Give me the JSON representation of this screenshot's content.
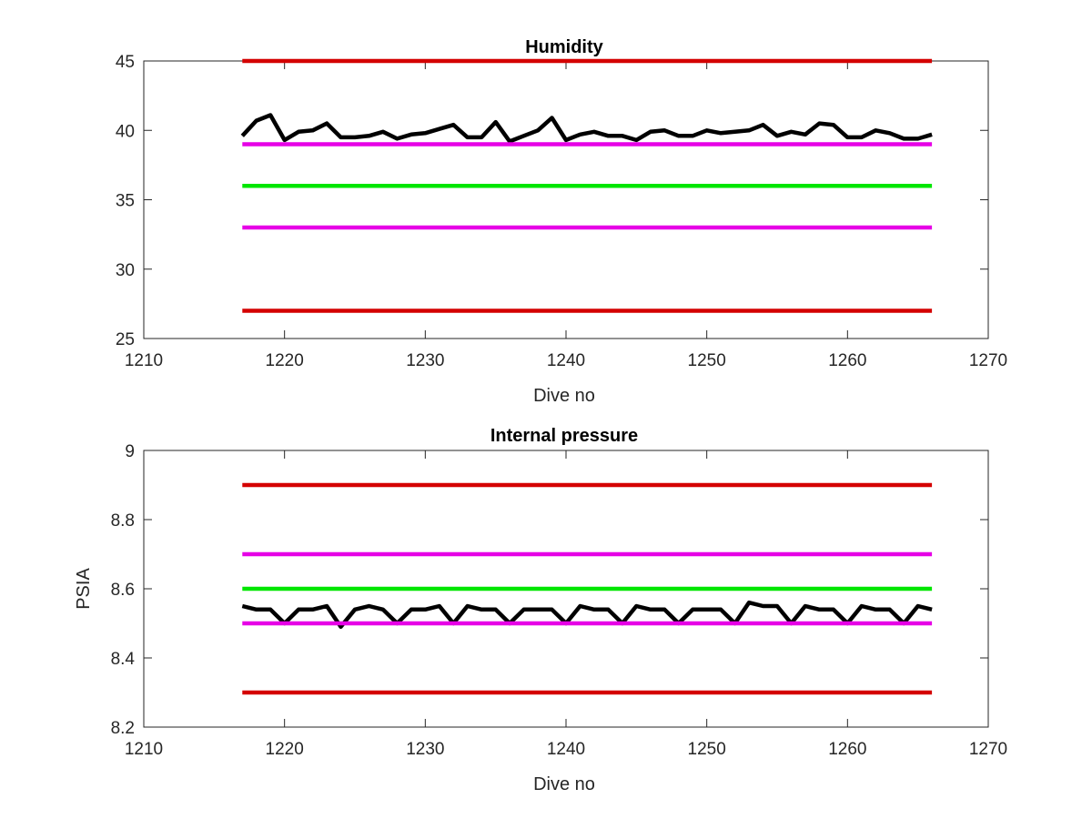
{
  "chart_data": [
    {
      "type": "line",
      "title": "Humidity",
      "xlabel": "Dive no",
      "ylabel": "",
      "xlim": [
        1210,
        1270
      ],
      "ylim": [
        25,
        45
      ],
      "xticks": [
        1210,
        1220,
        1230,
        1240,
        1250,
        1260,
        1270
      ],
      "yticks": [
        25,
        30,
        35,
        40,
        45
      ],
      "grid": false,
      "x": [
        1217,
        1218,
        1219,
        1220,
        1221,
        1222,
        1223,
        1224,
        1225,
        1226,
        1227,
        1228,
        1229,
        1230,
        1231,
        1232,
        1233,
        1234,
        1235,
        1236,
        1237,
        1238,
        1239,
        1240,
        1241,
        1242,
        1243,
        1244,
        1245,
        1246,
        1247,
        1248,
        1249,
        1250,
        1251,
        1252,
        1253,
        1254,
        1255,
        1256,
        1257,
        1258,
        1259,
        1260,
        1261,
        1262,
        1263,
        1264,
        1265,
        1266
      ],
      "series": [
        {
          "color": "#000000",
          "width": 4.5,
          "values": [
            39.6,
            40.7,
            41.1,
            39.3,
            39.9,
            40.0,
            40.5,
            39.5,
            39.5,
            39.6,
            39.9,
            39.4,
            39.7,
            39.8,
            40.1,
            40.4,
            39.5,
            39.5,
            40.6,
            39.2,
            39.6,
            40.0,
            40.9,
            39.3,
            39.7,
            39.9,
            39.6,
            39.6,
            39.3,
            39.9,
            40.0,
            39.6,
            39.6,
            40.0,
            39.8,
            39.9,
            40.0,
            40.4,
            39.6,
            39.9,
            39.7,
            40.5,
            40.4,
            39.5,
            39.5,
            40.0,
            39.8,
            39.4,
            39.4,
            39.7
          ]
        },
        {
          "color": "#d40000",
          "width": 4.5,
          "x_range": [
            1217,
            1266
          ],
          "constant": 45
        },
        {
          "color": "#e600e6",
          "width": 4.5,
          "x_range": [
            1217,
            1266
          ],
          "constant": 39
        },
        {
          "color": "#00e600",
          "width": 4.5,
          "x_range": [
            1217,
            1266
          ],
          "constant": 36
        },
        {
          "color": "#e600e6",
          "width": 4.5,
          "x_range": [
            1217,
            1266
          ],
          "constant": 33
        },
        {
          "color": "#d40000",
          "width": 4.5,
          "x_range": [
            1217,
            1266
          ],
          "constant": 27
        }
      ]
    },
    {
      "type": "line",
      "title": "Internal pressure",
      "xlabel": "Dive no",
      "ylabel": "PSIA",
      "xlim": [
        1210,
        1270
      ],
      "ylim": [
        8.2,
        9
      ],
      "xticks": [
        1210,
        1220,
        1230,
        1240,
        1250,
        1260,
        1270
      ],
      "yticks": [
        8.2,
        8.4,
        8.6,
        8.8,
        9
      ],
      "grid": false,
      "x": [
        1217,
        1218,
        1219,
        1220,
        1221,
        1222,
        1223,
        1224,
        1225,
        1226,
        1227,
        1228,
        1229,
        1230,
        1231,
        1232,
        1233,
        1234,
        1235,
        1236,
        1237,
        1238,
        1239,
        1240,
        1241,
        1242,
        1243,
        1244,
        1245,
        1246,
        1247,
        1248,
        1249,
        1250,
        1251,
        1252,
        1253,
        1254,
        1255,
        1256,
        1257,
        1258,
        1259,
        1260,
        1261,
        1262,
        1263,
        1264,
        1265,
        1266
      ],
      "series": [
        {
          "color": "#000000",
          "width": 4.5,
          "values": [
            8.55,
            8.54,
            8.54,
            8.5,
            8.54,
            8.54,
            8.55,
            8.49,
            8.54,
            8.55,
            8.54,
            8.5,
            8.54,
            8.54,
            8.55,
            8.5,
            8.55,
            8.54,
            8.54,
            8.5,
            8.54,
            8.54,
            8.54,
            8.5,
            8.55,
            8.54,
            8.54,
            8.5,
            8.55,
            8.54,
            8.54,
            8.5,
            8.54,
            8.54,
            8.54,
            8.5,
            8.56,
            8.55,
            8.55,
            8.5,
            8.55,
            8.54,
            8.54,
            8.5,
            8.55,
            8.54,
            8.54,
            8.5,
            8.55,
            8.54
          ]
        },
        {
          "color": "#d40000",
          "width": 4.5,
          "x_range": [
            1217,
            1266
          ],
          "constant": 8.9
        },
        {
          "color": "#e600e6",
          "width": 4.5,
          "x_range": [
            1217,
            1266
          ],
          "constant": 8.7
        },
        {
          "color": "#00e600",
          "width": 4.5,
          "x_range": [
            1217,
            1266
          ],
          "constant": 8.6
        },
        {
          "color": "#e600e6",
          "width": 4.5,
          "x_range": [
            1217,
            1266
          ],
          "constant": 8.5
        },
        {
          "color": "#d40000",
          "width": 4.5,
          "x_range": [
            1217,
            1266
          ],
          "constant": 8.3
        }
      ]
    }
  ]
}
